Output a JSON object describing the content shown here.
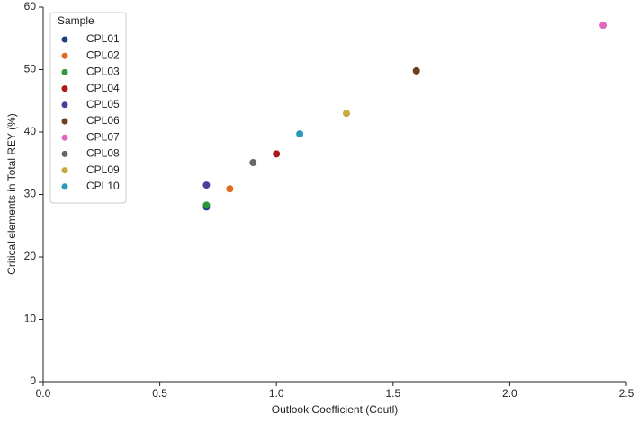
{
  "chart_data": {
    "type": "scatter",
    "xlabel": "Outlook Coefficient (Coutl)",
    "ylabel": "Critical elements in Total REY (%)",
    "legend_title": "Sample",
    "legend_loc": "upper left",
    "xlim": [
      0,
      2.5
    ],
    "ylim": [
      0,
      60
    ],
    "xticks": [
      {
        "value": 0,
        "label": "0.0"
      },
      0.5,
      {
        "value": 1,
        "label": "1.0"
      },
      1.5,
      {
        "value": 2,
        "label": "2.0"
      },
      2.5
    ],
    "yticks": [
      0,
      10,
      20,
      30,
      40,
      50,
      60
    ],
    "series": [
      {
        "name": "CPL01",
        "color": "#1f3f7f",
        "x": [
          0.7
        ],
        "values": [
          28.0
        ]
      },
      {
        "name": "CPL02",
        "color": "#e06a1b",
        "x": [
          0.8
        ],
        "values": [
          30.9
        ]
      },
      {
        "name": "CPL03",
        "color": "#2a9a3a",
        "x": [
          0.7
        ],
        "values": [
          28.3
        ]
      },
      {
        "name": "CPL04",
        "color": "#b01818",
        "x": [
          1.0
        ],
        "values": [
          36.5
        ]
      },
      {
        "name": "CPL05",
        "color": "#4a3f9a",
        "x": [
          0.7
        ],
        "values": [
          31.5
        ]
      },
      {
        "name": "CPL06",
        "color": "#6e3f1f",
        "x": [
          1.6
        ],
        "values": [
          49.8
        ]
      },
      {
        "name": "CPL07",
        "color": "#e066c0",
        "x": [
          2.4
        ],
        "values": [
          57.1
        ]
      },
      {
        "name": "CPL08",
        "color": "#666666",
        "x": [
          0.9
        ],
        "values": [
          35.1
        ]
      },
      {
        "name": "CPL09",
        "color": "#c8a840",
        "x": [
          1.3
        ],
        "values": [
          43.0
        ]
      },
      {
        "name": "CPL10",
        "color": "#2a9ab8",
        "x": [
          1.1
        ],
        "values": [
          39.7
        ]
      }
    ]
  }
}
